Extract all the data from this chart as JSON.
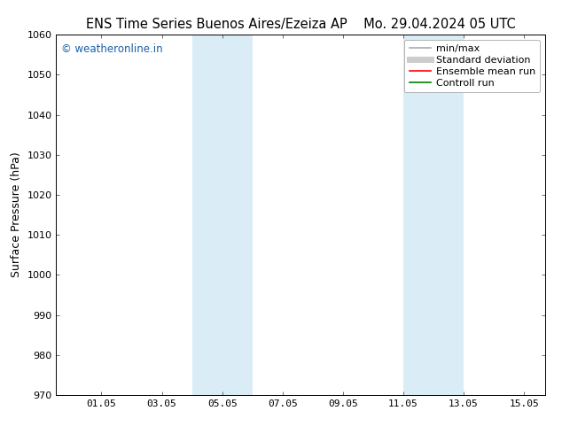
{
  "title_left": "ENS Time Series Buenos Aires/Ezeiza AP",
  "title_right": "Mo. 29.04.2024 05 UTC",
  "ylabel": "Surface Pressure (hPa)",
  "ylim": [
    970,
    1060
  ],
  "yticks": [
    970,
    980,
    990,
    1000,
    1010,
    1020,
    1030,
    1040,
    1050,
    1060
  ],
  "xlim_left": -0.5,
  "xlim_right": 15.7,
  "xtick_labels": [
    "01.05",
    "03.05",
    "05.05",
    "07.05",
    "09.05",
    "11.05",
    "13.05",
    "15.05"
  ],
  "xtick_positions": [
    1,
    3,
    5,
    7,
    9,
    11,
    13,
    15
  ],
  "shaded_bands": [
    {
      "xmin": 4.0,
      "xmax": 6.0
    },
    {
      "xmin": 11.0,
      "xmax": 13.0
    }
  ],
  "shade_color": "#daedf7",
  "watermark_text": "© weatheronline.in",
  "watermark_color": "#1a5fa8",
  "legend_entries": [
    {
      "label": "min/max",
      "color": "#aaaaaa",
      "lw": 1.2,
      "style": "solid"
    },
    {
      "label": "Standard deviation",
      "color": "#cccccc",
      "lw": 5,
      "style": "solid"
    },
    {
      "label": "Ensemble mean run",
      "color": "red",
      "lw": 1.2,
      "style": "solid"
    },
    {
      "label": "Controll run",
      "color": "green",
      "lw": 1.2,
      "style": "solid"
    }
  ],
  "bg_color": "#ffffff",
  "spine_color": "#000000",
  "font_size_title": 10.5,
  "font_size_axis": 9,
  "font_size_ticks": 8,
  "font_size_legend": 8,
  "font_size_watermark": 8.5
}
